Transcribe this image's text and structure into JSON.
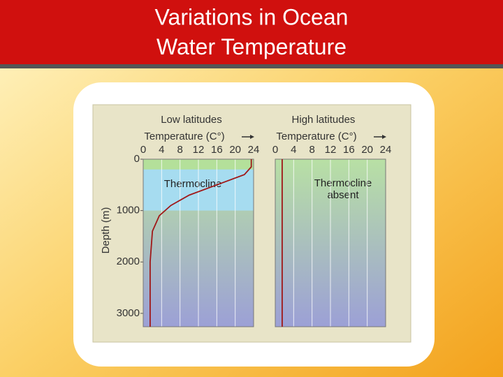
{
  "slide_title": "Variations in Ocean Water Temperature",
  "chart_data": [
    {
      "type": "line",
      "title": "Low latitudes",
      "x_label": "Temperature (C°)",
      "y_label": "Depth (m)",
      "xlim": [
        0,
        24
      ],
      "xticks": [
        0,
        4,
        8,
        12,
        16,
        20,
        24
      ],
      "ylim": [
        0,
        3260
      ],
      "yticks": [
        0,
        1000,
        2000,
        3000
      ],
      "y_inverted": true,
      "grid": "x",
      "band": {
        "label": "Thermocline",
        "from": 200,
        "to": 1000
      },
      "series": [
        {
          "color": "#a01818",
          "x": [
            23.5,
            23.5,
            22,
            16,
            10,
            6,
            3.5,
            2,
            1.5,
            1.5,
            1.5
          ],
          "values": [
            0,
            150,
            300,
            500,
            700,
            900,
            1100,
            1400,
            2000,
            3000,
            3260
          ]
        }
      ]
    },
    {
      "type": "line",
      "title": "High latitudes",
      "x_label": "Temperature (C°)",
      "annotation": "Thermocline absent",
      "xlim": [
        0,
        24
      ],
      "xticks": [
        0,
        4,
        8,
        12,
        16,
        20,
        24
      ],
      "ylim": [
        0,
        3260
      ],
      "y_inverted": true,
      "grid": "x",
      "series": [
        {
          "color": "#a01818",
          "x": [
            1.5,
            1.5
          ],
          "values": [
            0,
            3260
          ]
        }
      ]
    }
  ]
}
